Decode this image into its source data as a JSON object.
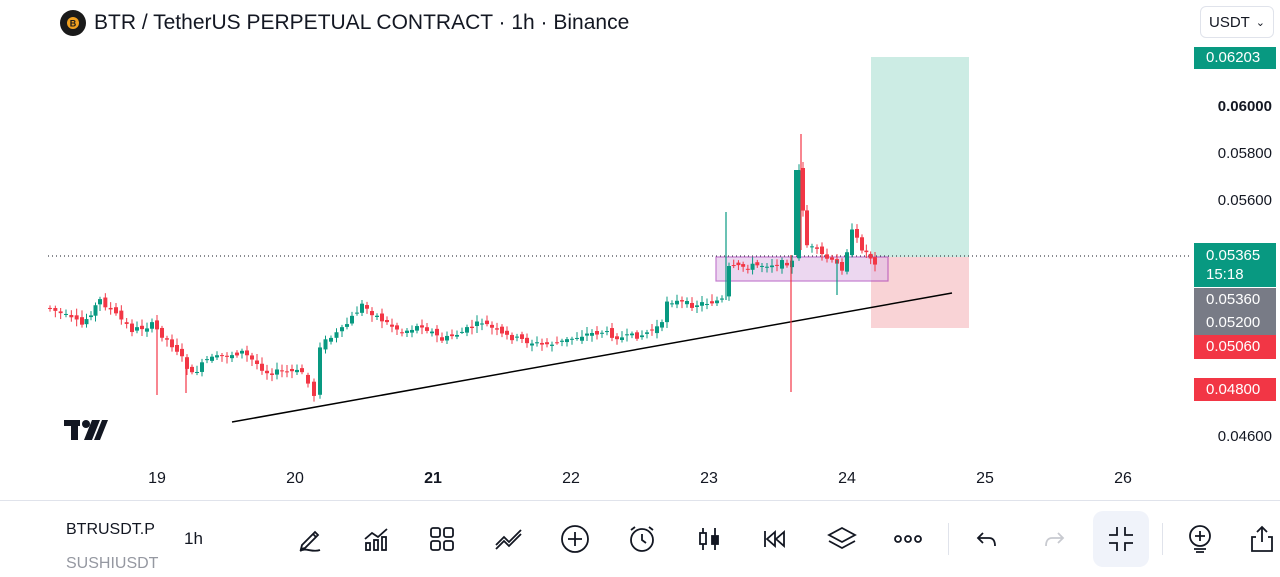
{
  "header": {
    "title": "BTR / TetherUS PERPETUAL CONTRACT · 1h · Binance",
    "currency": "USDT"
  },
  "chart_data": {
    "type": "candlestick",
    "symbol": "BTRUSDT.P",
    "interval": "1h",
    "exchange": "Binance",
    "price_axis": [
      "0.06000",
      "0.05800",
      "0.05600",
      "0.04600"
    ],
    "price_axis_bold": "0.06000",
    "date_axis": [
      "19",
      "20",
      "21",
      "22",
      "23",
      "24",
      "25",
      "26"
    ],
    "date_axis_bold": "21",
    "last_price": "0.05365",
    "countdown": "15:18",
    "price_tags": [
      {
        "value": "0.06203",
        "color": "#089981"
      },
      {
        "value": "0.05360",
        "color": "#787b86"
      },
      {
        "value": "0.05200",
        "color": "#787b86"
      },
      {
        "value": "0.05060",
        "color": "#f23645"
      },
      {
        "value": "0.04800",
        "color": "#f23645"
      }
    ],
    "position": {
      "entry": 0.05365,
      "target": 0.06203,
      "stop": 0.0506
    },
    "colors": {
      "up": "#089981",
      "down": "#f23645",
      "trendline": "#000000",
      "zone": "#ce93d8"
    }
  },
  "toolbar": {
    "symbols": [
      "BTRUSDT.P",
      "SUSHIUSDT"
    ],
    "interval": "1h"
  }
}
